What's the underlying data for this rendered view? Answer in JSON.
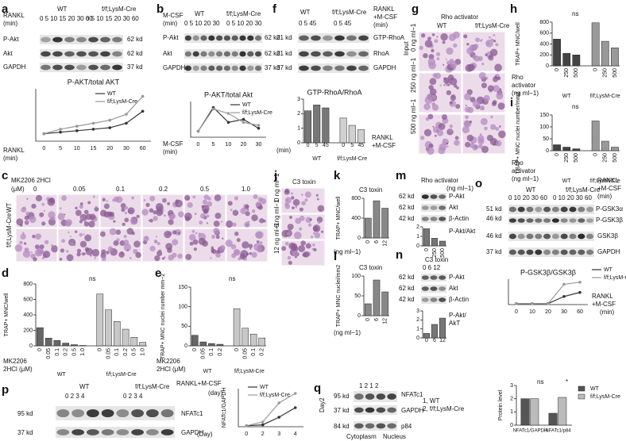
{
  "panels": {
    "a": {
      "texts": [
        "a",
        "RANKL",
        "(min)",
        "WT",
        "f/f;LysM-Cre",
        "0  5  10 15 20 30 60",
        "0  5  10 15 20 30 60",
        "P-Akt",
        "Akt",
        "GAPDH",
        "62 kd",
        "62 kd",
        "37 kd",
        "RANKL",
        "(min)"
      ],
      "chart": {
        "type": "line",
        "title": "P-AKT/total AKT",
        "categories": [
          "0",
          "5",
          "10",
          "15",
          "20",
          "30",
          "60"
        ],
        "ylim": [
          0,
          3.5
        ],
        "series": [
          {
            "name": "WT",
            "color": "#333333",
            "values": [
              0.5,
              0.6,
              0.7,
              0.8,
              0.9,
              1.2,
              2.0
            ]
          },
          {
            "name": "f/f;LysM-Cre",
            "color": "#999999",
            "values": [
              0.5,
              0.8,
              1.0,
              1.2,
              1.4,
              1.8,
              3.0
            ]
          }
        ]
      }
    },
    "b": {
      "texts": [
        "b",
        "M-CSF",
        "(min)",
        "WT",
        "f/f;LysM-Cre",
        "0  5  10 20 30",
        "0  5  10 20 30",
        "P-Akt",
        "Akt",
        "GAPDH",
        "62 kd",
        "62 kd",
        "37 kd",
        "M-CSF",
        "(min)"
      ],
      "chart": {
        "type": "line",
        "title": "P-AKT/total Akt",
        "categories": [
          "0",
          "5",
          "10",
          "20",
          "30"
        ],
        "ylim": [
          0,
          1.2
        ],
        "series": [
          {
            "name": "WT",
            "color": "#333333",
            "values": [
              0.2,
              1.0,
              0.5,
              0.6,
              0.3
            ]
          },
          {
            "name": "f/f;LysM-Cre",
            "color": "#999999",
            "values": [
              0.2,
              0.95,
              0.8,
              0.5,
              0.4
            ]
          }
        ]
      }
    },
    "c": {
      "texts": [
        "c",
        "MK2206 2HCl",
        "(μM)",
        "0",
        "0.05",
        "0.1",
        "0.2",
        "0.5",
        "1.0",
        "WT",
        "f/f;LysM-Cre"
      ]
    },
    "d": {
      "texts": [
        "d",
        "ns",
        "MK2206",
        "2HCl (μM)"
      ],
      "chart": {
        "type": "bar",
        "ylabel": "TRAP+ MNC/well",
        "ylim": [
          0,
          800
        ],
        "yticks": [
          0,
          200,
          400,
          600,
          800
        ],
        "groups": [
          {
            "label": "WT",
            "color": "#666666",
            "categories": [
              "0",
              "0.05",
              "0.1",
              "0.2",
              "0.5",
              "1.0"
            ],
            "values": [
              235,
              100,
              70,
              35,
              15,
              5
            ]
          },
          {
            "label": "f/f;LysM-Cre",
            "color": "#c8c8c8",
            "categories": [
              "0",
              "0.05",
              "0.1",
              "0.2",
              "0.5",
              "1.0"
            ],
            "values": [
              670,
              465,
              315,
              215,
              110,
              45
            ]
          }
        ]
      }
    },
    "e": {
      "texts": [
        "e",
        "ns",
        "MK2206",
        "2HCl (μM)"
      ],
      "chart": {
        "type": "bar",
        "ylabel": "TRAP+ MNC nuclei number mm−2",
        "ylim": [
          0,
          150
        ],
        "yticks": [
          0,
          50,
          100,
          150
        ],
        "groups": [
          {
            "label": "WT",
            "color": "#666666",
            "categories": [
              "0",
              "0.05",
              "0.1",
              "0.2"
            ],
            "values": [
              27,
              10,
              6,
              4
            ]
          },
          {
            "label": "f/f;LysM-Cre",
            "color": "#c8c8c8",
            "categories": [
              "0",
              "0.05",
              "0.1",
              "0.2"
            ],
            "values": [
              95,
              45,
              30,
              20
            ]
          }
        ]
      }
    },
    "f": {
      "texts": [
        "f",
        "WT",
        "f/f;LysM-Cre",
        "RANKL",
        "+M-CSF",
        "(min)",
        "0  5  45",
        "0  5  45",
        "21 kd",
        "21 kd",
        "37 kd",
        "GTP-RhoA",
        "RhoA",
        "GAPDH",
        "Input",
        "(min)",
        "RANKL",
        "+M-CSF"
      ],
      "chart": {
        "type": "bar",
        "title": "GTP-RhoA/RhoA",
        "ylim": [
          0,
          3
        ],
        "yticks": [
          0,
          1,
          2,
          3
        ],
        "groups": [
          {
            "label": "WT",
            "color": "#777777",
            "categories": [
              "0",
              "5",
              "45"
            ],
            "values": [
              2.2,
              2.6,
              2.4
            ]
          },
          {
            "label": "f/f;LysM-Cre",
            "color": "#d0d0d0",
            "categories": [
              "0",
              "5",
              "45"
            ],
            "values": [
              1.7,
              1.2,
              0.9
            ]
          }
        ]
      }
    },
    "g": {
      "texts": [
        "g",
        "Rho activator",
        "WT",
        "f/f;LysM-Cre",
        "0 ng ml−1",
        "250 ng ml−1",
        "500 ng ml−1"
      ]
    },
    "h": {
      "texts": [
        "h",
        "ns",
        "Rho",
        "activator",
        "(ng ml−1)"
      ],
      "chart": {
        "type": "bar",
        "ylabel": "TRAP+ MNC/well",
        "ylim": [
          0,
          800
        ],
        "yticks": [
          0,
          200,
          400,
          600,
          800
        ],
        "groups": [
          {
            "label": "WT",
            "color": "#444444",
            "categories": [
              "0",
              "250",
              "500"
            ],
            "values": [
              490,
              230,
              200
            ]
          },
          {
            "label": "f/f;LysM-Cre",
            "color": "#999999",
            "categories": [
              "0",
              "250",
              "500"
            ],
            "values": [
              790,
              450,
              330
            ]
          }
        ]
      }
    },
    "i": {
      "texts": [
        "i",
        "ns",
        "Rho",
        "activator",
        "(ng ml−1)"
      ],
      "chart": {
        "type": "bar",
        "ylabel": "TRAP+ MNC nuclei number/mm2",
        "ylim": [
          0,
          150
        ],
        "yticks": [
          0,
          50,
          100,
          150
        ],
        "groups": [
          {
            "label": "WT",
            "color": "#444444",
            "categories": [
              "0",
              "250",
              "500"
            ],
            "values": [
              25,
              15,
              8
            ]
          },
          {
            "label": "f/f;LysM-Cre",
            "color": "#999999",
            "categories": [
              "0",
              "250",
              "500"
            ],
            "values": [
              125,
              40,
              15
            ]
          }
        ]
      }
    },
    "j": {
      "texts": [
        "j",
        "C3 toxin",
        "0 ng ml−1",
        "6 ng ml−1",
        "12 ng ml−1"
      ]
    },
    "k": {
      "texts": [
        "k",
        "C3 toxin",
        "(ng ml−1)"
      ],
      "chart": {
        "type": "bar",
        "ylabel": "TRAP+ MNC/well",
        "ylim": [
          0,
          800
        ],
        "yticks": [
          0,
          400,
          800
        ],
        "groups": [
          {
            "color": "#888888",
            "categories": [
              "0",
              "6",
              "12"
            ],
            "values": [
              400,
              750,
              600
            ]
          }
        ]
      }
    },
    "l": {
      "texts": [
        "l",
        "C3 toxin",
        "(ng ml−1)"
      ],
      "chart": {
        "type": "bar",
        "ylabel": "TRAP+ MNC nuclei/mm2",
        "ylim": [
          0,
          100
        ],
        "yticks": [
          0,
          50,
          100
        ],
        "groups": [
          {
            "color": "#888888",
            "categories": [
              "0",
              "6",
              "12"
            ],
            "values": [
              30,
              90,
              60
            ]
          }
        ]
      }
    },
    "m": {
      "texts": [
        "m",
        "Rho activator",
        "(ng ml−1)",
        "62 kd",
        "62 kd",
        "42 kd",
        "P-Akt",
        "Akt",
        "β-Actin",
        "P-Akt/Akt"
      ],
      "chart": {
        "type": "bar",
        "ylim": [
          0,
          2
        ],
        "yticks": [
          0,
          1,
          2
        ],
        "groups": [
          {
            "color": "#777777",
            "categories": [
              "0",
              "250",
              "500"
            ],
            "values": [
              1.8,
              0.8,
              0.5
            ]
          }
        ]
      }
    },
    "n": {
      "texts": [
        "n",
        "C3 toxin",
        "0  6  12",
        "62 kd",
        "62 kd",
        "42 kd",
        "P-Akt",
        "Akt",
        "β-Actin",
        "P-Akt/",
        "AkT"
      ],
      "chart": {
        "type": "bar",
        "ylim": [
          0,
          3
        ],
        "yticks": [
          0,
          1,
          2,
          3
        ],
        "groups": [
          {
            "color": "#777777",
            "categories": [
              "0",
              "6",
              "12"
            ],
            "values": [
              0.5,
              1.5,
              2.2
            ]
          }
        ]
      }
    },
    "o": {
      "texts": [
        "o",
        "WT",
        "f/f;LysM-Cre",
        "RANKL",
        "+M-CSF",
        "(min)",
        "0  10 20 30 60",
        "0  10 20 30 60",
        "51 kd",
        "46 kd",
        "46 kd",
        "37 kd",
        "P-GSK3α",
        "P-GSK3β",
        "GSK3β",
        "GAPDH",
        "RANKL",
        "+M-CSF",
        "(min)"
      ],
      "chart": {
        "type": "line",
        "title": "P-GSK3β/GSK3β",
        "categories": [
          "0",
          "10",
          "20",
          "30",
          "60"
        ],
        "ylim": [
          0,
          2.5
        ],
        "series": [
          {
            "name": "WT",
            "color": "#333333",
            "values": [
              0.1,
              0.1,
              0.1,
              0.8,
              1.2
            ]
          },
          {
            "name": "f/f;LysM-Cre",
            "color": "#999999",
            "values": [
              0.1,
              0.1,
              0.1,
              2.0,
              2.2
            ]
          }
        ]
      }
    },
    "p": {
      "texts": [
        "p",
        "WT",
        "f/f;LysM-Cre",
        "RANKL+M-CSF",
        "(day)",
        "0  2  3  4",
        "0  2  3  4",
        "95 kd",
        "37 kd",
        "NFATc1",
        "GAPDH",
        "(Day)"
      ],
      "chart": {
        "type": "line",
        "ylabel": "NFATc1/GAPDH",
        "categories": [
          "0",
          "2",
          "3",
          "4"
        ],
        "ylim": [
          0,
          4
        ],
        "series": [
          {
            "name": "WT",
            "color": "#333333",
            "values": [
              0.1,
              0.2,
              1.0,
              2.0
            ]
          },
          {
            "name": "f/f;LysM-Cre",
            "color": "#999999",
            "values": [
              0.1,
              0.5,
              2.5,
              3.5
            ]
          }
        ]
      }
    },
    "q": {
      "texts": [
        "q",
        "1  2  1  2",
        "95 kd",
        "37 kd",
        "84 kd",
        "Day2",
        "NFATc1",
        "GAPDH",
        "p84",
        "1, WT",
        "2, f/f;LysM-Cre",
        "Cytoplasm",
        "Nucleus",
        "ns",
        "*"
      ],
      "chart": {
        "type": "gbar",
        "ylabel": "Protein level",
        "ylim": [
          0,
          3
        ],
        "yticks": [
          0,
          1,
          2,
          3
        ],
        "categories": [
          "NFATc1/GAPDH",
          "NFATc1/p84"
        ],
        "series": [
          {
            "name": "WT",
            "color": "#555555",
            "values": [
              2.0,
              0.9
            ]
          },
          {
            "name": "f/f;LysM-Cre",
            "color": "#bbbbbb",
            "values": [
              2.0,
              2.1
            ]
          }
        ]
      }
    }
  }
}
